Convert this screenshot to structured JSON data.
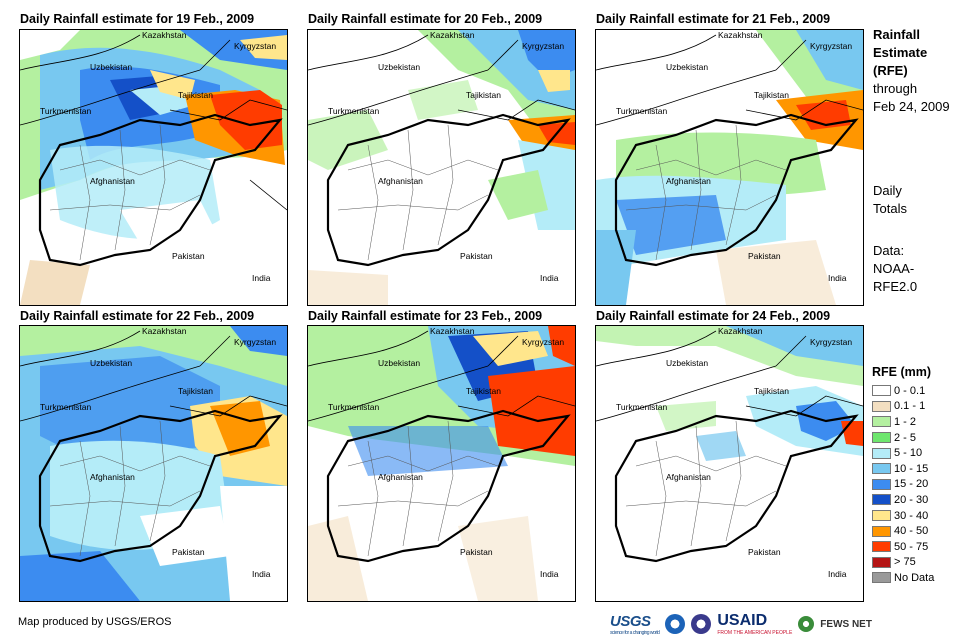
{
  "panels": [
    {
      "title": "Daily Rainfall estimate for 19 Feb., 2009"
    },
    {
      "title": "Daily Rainfall estimate for 20 Feb., 2009"
    },
    {
      "title": "Daily Rainfall estimate for 21 Feb., 2009"
    },
    {
      "title": "Daily Rainfall estimate for 22 Feb., 2009"
    },
    {
      "title": "Daily Rainfall estimate for 23 Feb., 2009"
    },
    {
      "title": "Daily Rainfall estimate for 24 Feb., 2009"
    }
  ],
  "map_labels": {
    "kazakhstan": "Kazakhstan",
    "kyrgyzstan": "Kyrgyzstan",
    "uzbekistan": "Uzbekistan",
    "tajikistan": "Tajikistan",
    "turkmenistan": "Turkmenistan",
    "afghanistan": "Afghanistan",
    "pakistan": "Pakistan",
    "india": "India"
  },
  "side": {
    "title1": "Rainfall",
    "title2": "Estimate",
    "title3": "(RFE)",
    "through": "through",
    "date": "Feb 24, 2009",
    "daily": "Daily",
    "totals": "Totals",
    "data_label": "Data:",
    "noaa": "NOAA-",
    "rfe": "RFE2.0"
  },
  "legend": {
    "title": "RFE (mm)",
    "items": [
      {
        "label": "0 - 0.1",
        "color": "#ffffff"
      },
      {
        "label": "0.1 - 1",
        "color": "#f3dfc1"
      },
      {
        "label": "1 - 2",
        "color": "#b4f0a0"
      },
      {
        "label": "2 - 5",
        "color": "#6ee66e"
      },
      {
        "label": "5 - 10",
        "color": "#b4ecf8"
      },
      {
        "label": "10 - 15",
        "color": "#78c8f0"
      },
      {
        "label": "15 - 20",
        "color": "#3c8cf0"
      },
      {
        "label": "20 - 30",
        "color": "#1450c8"
      },
      {
        "label": "30 - 40",
        "color": "#ffe68c"
      },
      {
        "label": "40 - 50",
        "color": "#ff9600"
      },
      {
        "label": "50 - 75",
        "color": "#ff3c00"
      },
      {
        "label": "> 75",
        "color": "#b41414"
      },
      {
        "label": "No Data",
        "color": "#999999"
      }
    ]
  },
  "credit": "Map produced by USGS/EROS",
  "logos": {
    "usgs": "USGS",
    "usgs_tag": "science for a changing world",
    "usaid": "USAID",
    "usaid_tag": "FROM THE AMERICAN PEOPLE",
    "fews": "FEWS NET"
  }
}
